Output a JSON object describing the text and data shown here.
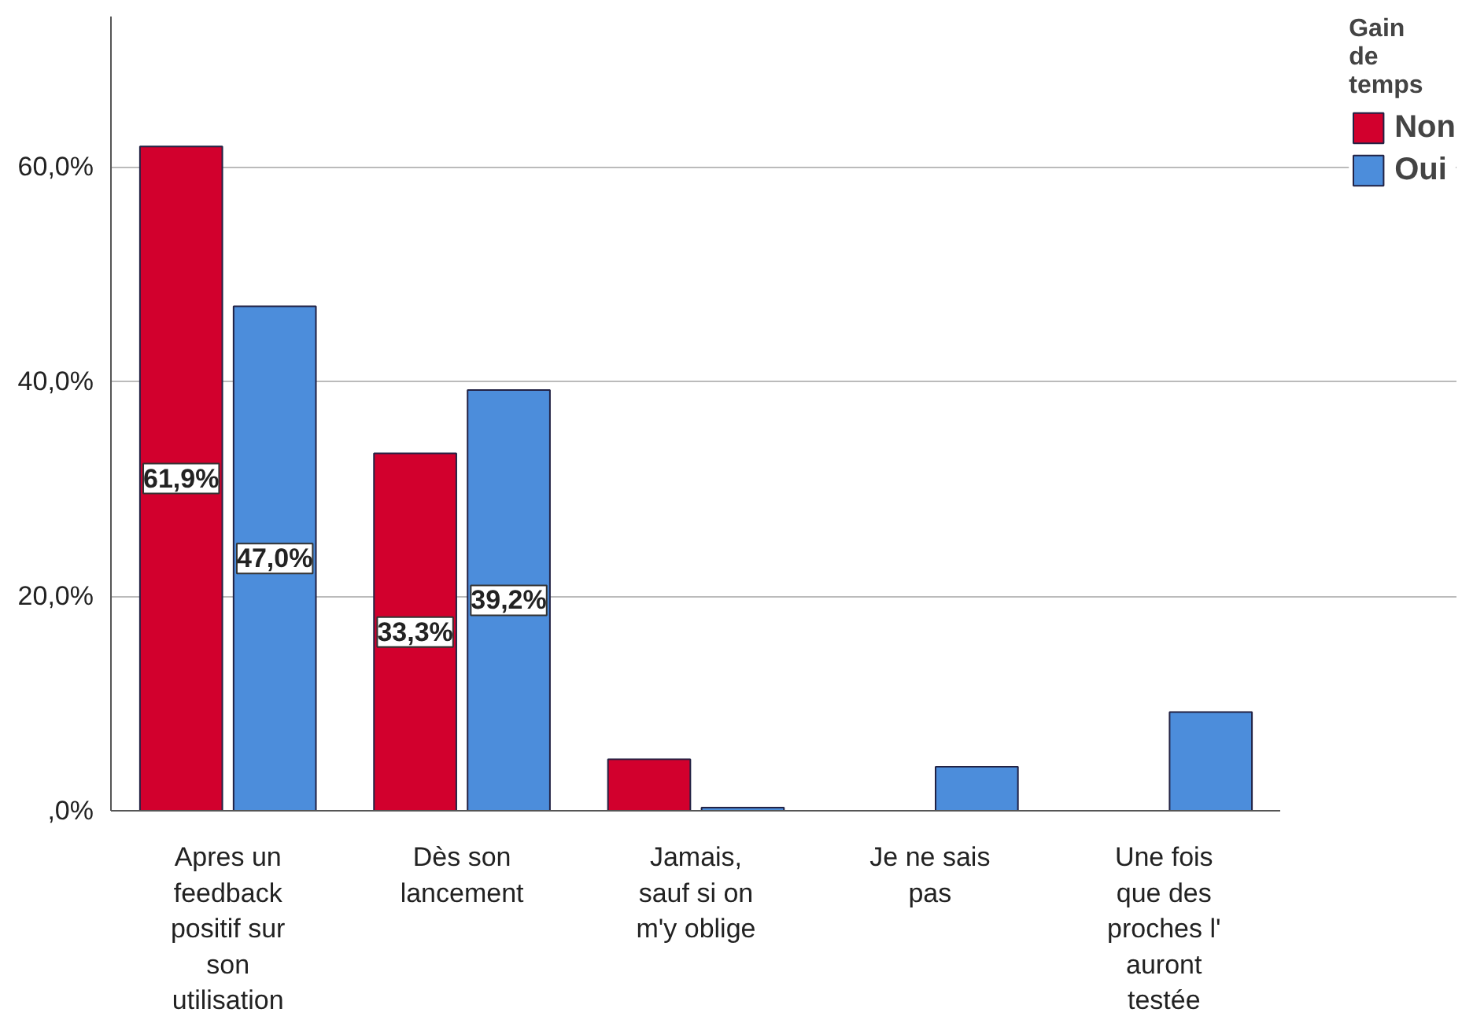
{
  "chart_data": {
    "type": "bar",
    "categories": [
      "Apres un\nfeedback\npositif sur\nson\nutilisation",
      "Dès son\nlancement",
      "Jamais,\nsauf si on\nm'y oblige",
      "Je ne sais\npas",
      "Une fois\nque des\nproches l'\nauront\ntestée"
    ],
    "legend_title": "Gain\nde\ntemps",
    "series": [
      {
        "name": "Non",
        "color": "#d2002d",
        "values": [
          61.9,
          33.3,
          4.8,
          0,
          0
        ],
        "value_labels": [
          "61,9%",
          "33,3%",
          null,
          null,
          null
        ]
      },
      {
        "name": "Oui",
        "color": "#4c8ddb",
        "values": [
          47.0,
          39.2,
          0.3,
          4.1,
          9.2
        ],
        "value_labels": [
          "47,0%",
          "39,2%",
          null,
          null,
          null
        ]
      }
    ],
    "ylim": [
      0,
      74
    ],
    "yticks": [
      {
        "value": 0,
        "label": ",0%"
      },
      {
        "value": 20,
        "label": "20,0%"
      },
      {
        "value": 40,
        "label": "40,0%"
      },
      {
        "value": 60,
        "label": "60,0%"
      }
    ],
    "grid": "y",
    "legend": "right"
  }
}
